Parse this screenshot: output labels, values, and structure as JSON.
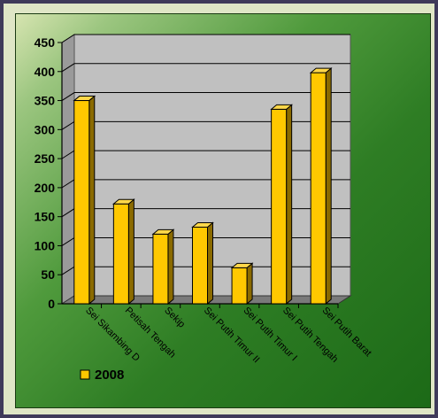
{
  "chart_data": {
    "type": "bar",
    "categories": [
      "Sei Sikambing D",
      "Petisah Tengah",
      "Sekip",
      "Sei Putih Timur II",
      "Sei Putih Timur I",
      "Sei Putih Tengah",
      "Sei Putih Barat"
    ],
    "series": [
      {
        "name": "2008",
        "values": [
          350,
          172,
          120,
          132,
          62,
          335,
          398
        ]
      }
    ],
    "ylim": [
      0,
      450
    ],
    "yticks": [
      "0",
      "50",
      "100",
      "150",
      "200",
      "250",
      "300",
      "350",
      "400",
      "450"
    ],
    "grid": true,
    "legend_position": "bottom-left",
    "colors": {
      "bar_front": "#ffc800",
      "bar_top": "#ffd84a",
      "bar_side": "#8a6a00",
      "plot_back": "#c0c0c0",
      "plot_floor": "#7a7a7a",
      "gridline": "#000000"
    }
  }
}
